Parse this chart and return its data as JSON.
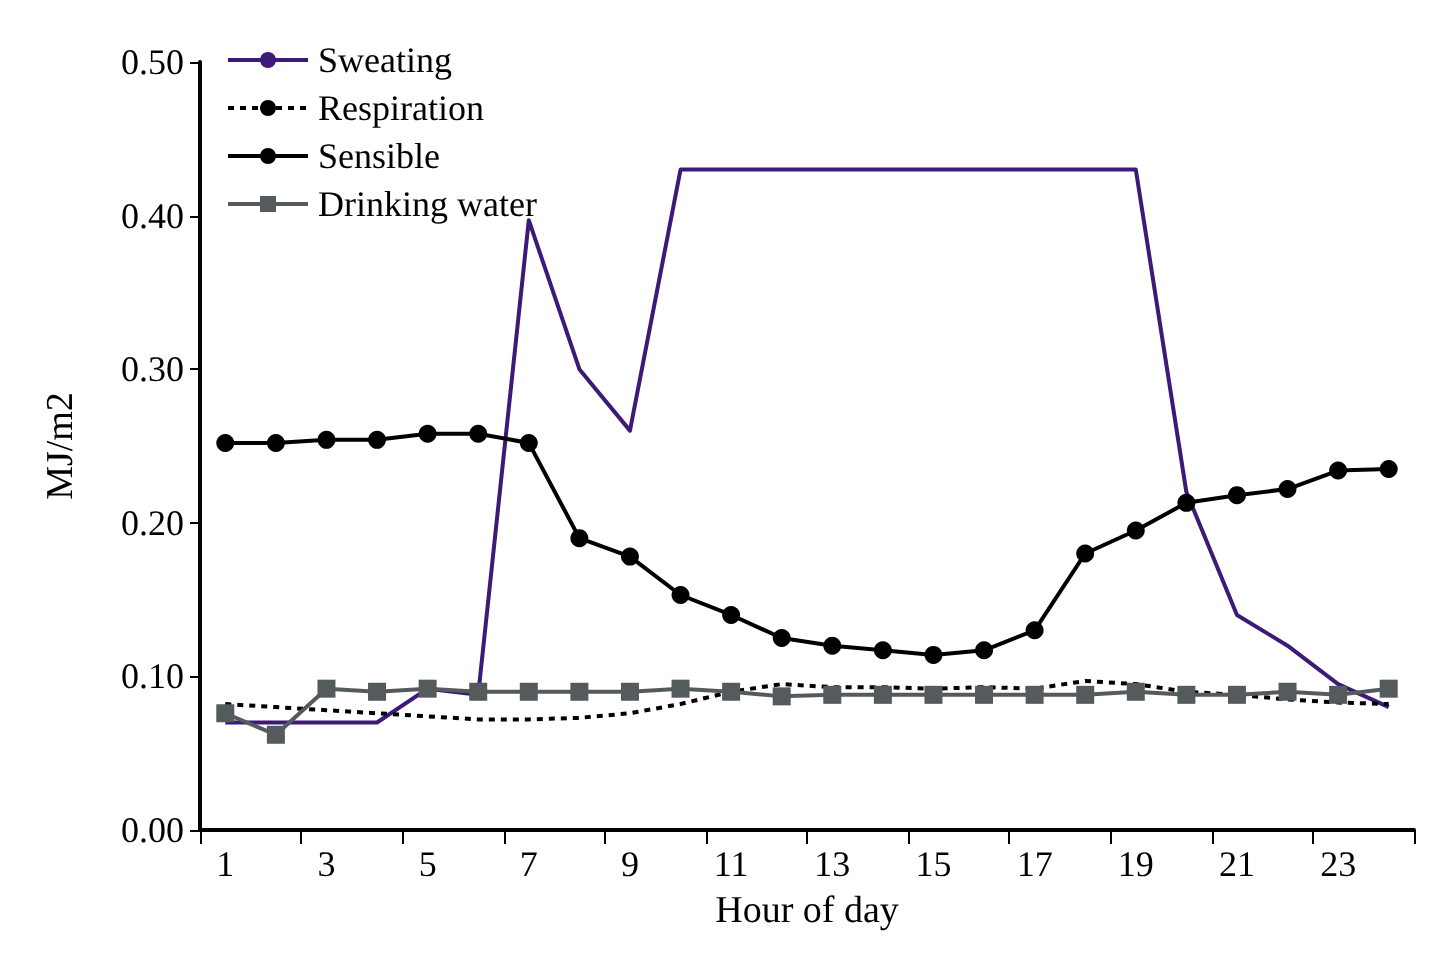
{
  "chart_data": {
    "type": "line",
    "xlabel": "Hour of day",
    "ylabel": "MJ/m2",
    "x": [
      1,
      2,
      3,
      4,
      5,
      6,
      7,
      8,
      9,
      10,
      11,
      12,
      13,
      14,
      15,
      16,
      17,
      18,
      19,
      20,
      21,
      22,
      23,
      24
    ],
    "xlim": [
      0.5,
      24.5
    ],
    "xticks": [
      {
        "value": 0.5,
        "label": null
      },
      1,
      {
        "value": 2.5,
        "label": null
      },
      3,
      {
        "value": 4.5,
        "label": null
      },
      5,
      {
        "value": 6.5,
        "label": null
      },
      7,
      {
        "value": 8.5,
        "label": null
      },
      9,
      {
        "value": 10.5,
        "label": null
      },
      11,
      {
        "value": 12.5,
        "label": null
      },
      13,
      {
        "value": 14.5,
        "label": null
      },
      15,
      {
        "value": 16.5,
        "label": null
      },
      17,
      {
        "value": 18.5,
        "label": null
      },
      19,
      {
        "value": 20.5,
        "label": null
      },
      21,
      {
        "value": 22.5,
        "label": null
      },
      23,
      {
        "value": 24.5,
        "label": null
      }
    ],
    "ylim": [
      0,
      0.5
    ],
    "yticks": [
      {
        "value": 0,
        "label": "0.00"
      },
      {
        "value": 0.1,
        "label": "0.10"
      },
      {
        "value": 0.2,
        "label": "0.20"
      },
      {
        "value": 0.3,
        "label": "0.30"
      },
      {
        "value": 0.4,
        "label": "0.40"
      },
      {
        "value": 0.5,
        "label": "0.50"
      }
    ],
    "grid": false,
    "legend": "top left",
    "series": [
      {
        "name": "Sweating",
        "color": "#3d1a78",
        "marker": "none",
        "line_style": "solid",
        "values": [
          0.07,
          0.07,
          0.07,
          0.07,
          0.092,
          0.088,
          0.397,
          0.3,
          0.26,
          0.43,
          0.43,
          0.43,
          0.43,
          0.43,
          0.43,
          0.43,
          0.43,
          0.43,
          0.43,
          0.22,
          0.14,
          0.12,
          0.095,
          0.08
        ]
      },
      {
        "name": "Respiration",
        "color": "#000000",
        "marker": "none",
        "line_style": "dashed",
        "values": [
          0.082,
          0.08,
          0.078,
          0.076,
          0.074,
          0.072,
          0.072,
          0.073,
          0.076,
          0.082,
          0.09,
          0.095,
          0.093,
          0.093,
          0.092,
          0.093,
          0.092,
          0.097,
          0.095,
          0.09,
          0.088,
          0.085,
          0.083,
          0.082
        ]
      },
      {
        "name": "Sensible",
        "color": "#000000",
        "marker": "circle",
        "line_style": "solid",
        "values": [
          0.252,
          0.252,
          0.254,
          0.254,
          0.258,
          0.258,
          0.252,
          0.19,
          0.178,
          0.153,
          0.14,
          0.125,
          0.12,
          0.117,
          0.114,
          0.117,
          0.13,
          0.18,
          0.195,
          0.213,
          0.218,
          0.222,
          0.234,
          0.235
        ]
      },
      {
        "name": "Drinking water",
        "color": "#555a5c",
        "marker": "square",
        "line_style": "solid",
        "values": [
          0.076,
          0.062,
          0.092,
          0.09,
          0.092,
          0.09,
          0.09,
          0.09,
          0.09,
          0.092,
          0.09,
          0.087,
          0.088,
          0.088,
          0.088,
          0.088,
          0.088,
          0.088,
          0.09,
          0.088,
          0.088,
          0.09,
          0.088,
          0.092
        ]
      }
    ]
  }
}
